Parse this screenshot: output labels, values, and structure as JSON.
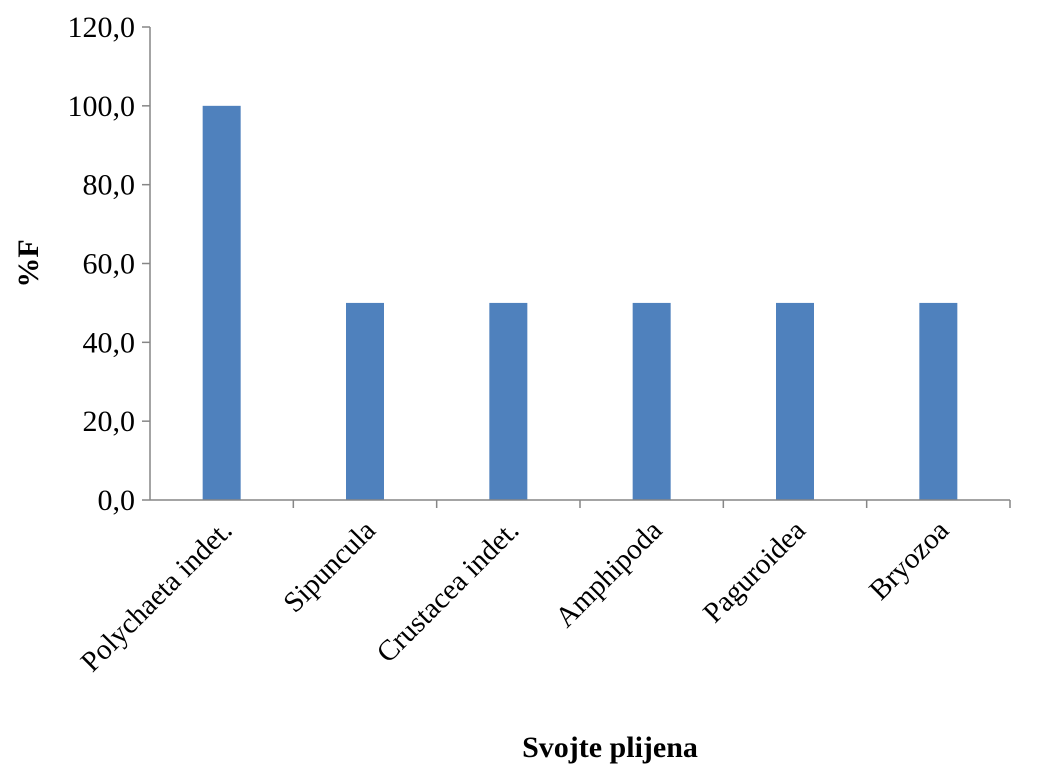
{
  "chart_data": {
    "type": "bar",
    "title": "",
    "xlabel": "Svojte plijena",
    "ylabel": "%F",
    "categories": [
      "Polychaeta indet.",
      "Sipuncula",
      "Crustacea indet.",
      "Amphipoda",
      "Paguroidea",
      "Bryozoa"
    ],
    "series": [
      {
        "values": [
          100.0,
          50.0,
          50.0,
          50.0,
          50.0,
          50.0
        ]
      }
    ],
    "ylim": [
      0,
      120
    ],
    "yticks": [
      0,
      20,
      40,
      60,
      80,
      100,
      120
    ],
    "ytick_labels": [
      "0,0",
      "20,0",
      "40,0",
      "60,0",
      "80,0",
      "100,0",
      "120,0"
    ],
    "grid": false,
    "legend": "none",
    "bar_color": "#4F81BD"
  }
}
